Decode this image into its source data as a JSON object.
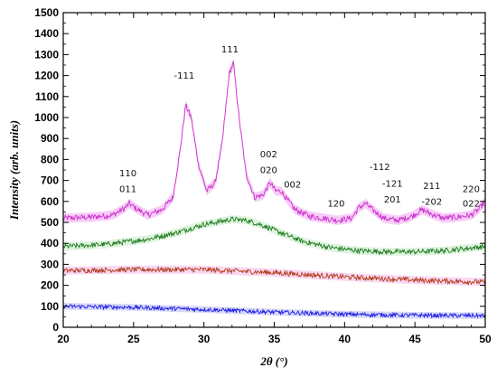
{
  "chart_data": {
    "type": "line",
    "xlabel": "2θ (°)",
    "ylabel": "Intensity (arb. units)",
    "xlim": [
      20,
      50
    ],
    "ylim": [
      0,
      1500
    ],
    "xticks": [
      "20",
      "25",
      "30",
      "35",
      "40",
      "45",
      "50"
    ],
    "yticks": [
      "0",
      "100",
      "200",
      "300",
      "400",
      "500",
      "600",
      "700",
      "800",
      "900",
      "1000",
      "1100",
      "1200",
      "1300",
      "1400",
      "1500"
    ],
    "grid": false,
    "series": [
      {
        "color": "#cc33cc",
        "band_color": "#f5b8f5",
        "noise": 14,
        "x": [
          20,
          22,
          23.5,
          24.3,
          24.7,
          25.2,
          26,
          27,
          27.8,
          28.3,
          28.7,
          29.1,
          29.6,
          30.2,
          30.8,
          31.3,
          31.8,
          32.1,
          32.5,
          33.0,
          33.6,
          34.2,
          34.7,
          35.1,
          35.5,
          35.9,
          36.5,
          37.5,
          38.5,
          39.5,
          40.5,
          41.0,
          41.5,
          42.0,
          42.8,
          43.8,
          44.8,
          45.5,
          46.2,
          47.0,
          48.0,
          49.0,
          49.5,
          50
        ],
        "y": [
          520,
          525,
          535,
          565,
          590,
          565,
          535,
          560,
          620,
          840,
          1060,
          1000,
          780,
          650,
          690,
          880,
          1210,
          1260,
          1000,
          730,
          620,
          630,
          690,
          650,
          650,
          610,
          560,
          530,
          520,
          510,
          520,
          570,
          590,
          560,
          520,
          510,
          530,
          560,
          540,
          520,
          525,
          535,
          560,
          600
        ]
      },
      {
        "color": "#1f7a1f",
        "band_color": "#d2f0d2",
        "noise": 12,
        "x": [
          20,
          23,
          26,
          28,
          30,
          32,
          33,
          34,
          35.5,
          37,
          39,
          41,
          43,
          45,
          47,
          48.5,
          50
        ],
        "y": [
          385,
          395,
          420,
          450,
          490,
          515,
          510,
          490,
          450,
          410,
          380,
          365,
          360,
          360,
          365,
          375,
          385
        ]
      },
      {
        "color": "#b33a1a",
        "band_color": "#f7c8ec",
        "noise": 12,
        "x": [
          20,
          25,
          30,
          35,
          40,
          45,
          50
        ],
        "y": [
          270,
          275,
          275,
          260,
          240,
          225,
          215
        ]
      },
      {
        "color": "#1a1ae6",
        "band_color": "#c8c8f5",
        "noise": 10,
        "x": [
          20,
          25,
          30,
          35,
          40,
          45,
          50
        ],
        "y": [
          100,
          95,
          85,
          72,
          62,
          57,
          55
        ]
      }
    ],
    "annotations": [
      {
        "text": "111",
        "x": 31.85,
        "y": 1310
      },
      {
        "text": "-111",
        "x": 28.6,
        "y": 1185
      },
      {
        "text": "110",
        "x": 24.6,
        "y": 720
      },
      {
        "text": "011",
        "x": 24.6,
        "y": 645
      },
      {
        "text": "002",
        "x": 34.6,
        "y": 810
      },
      {
        "text": "020",
        "x": 34.6,
        "y": 735
      },
      {
        "text": "002",
        "x": 36.3,
        "y": 665
      },
      {
        "text": "120",
        "x": 39.4,
        "y": 575
      },
      {
        "text": "-112",
        "x": 42.5,
        "y": 750
      },
      {
        "text": "-121",
        "x": 43.4,
        "y": 670
      },
      {
        "text": "201",
        "x": 43.4,
        "y": 595
      },
      {
        "text": "211",
        "x": 46.2,
        "y": 660
      },
      {
        "text": "-202",
        "x": 46.2,
        "y": 585
      },
      {
        "text": "220",
        "x": 49.0,
        "y": 645
      },
      {
        "text": "022",
        "x": 49.0,
        "y": 575
      }
    ]
  }
}
